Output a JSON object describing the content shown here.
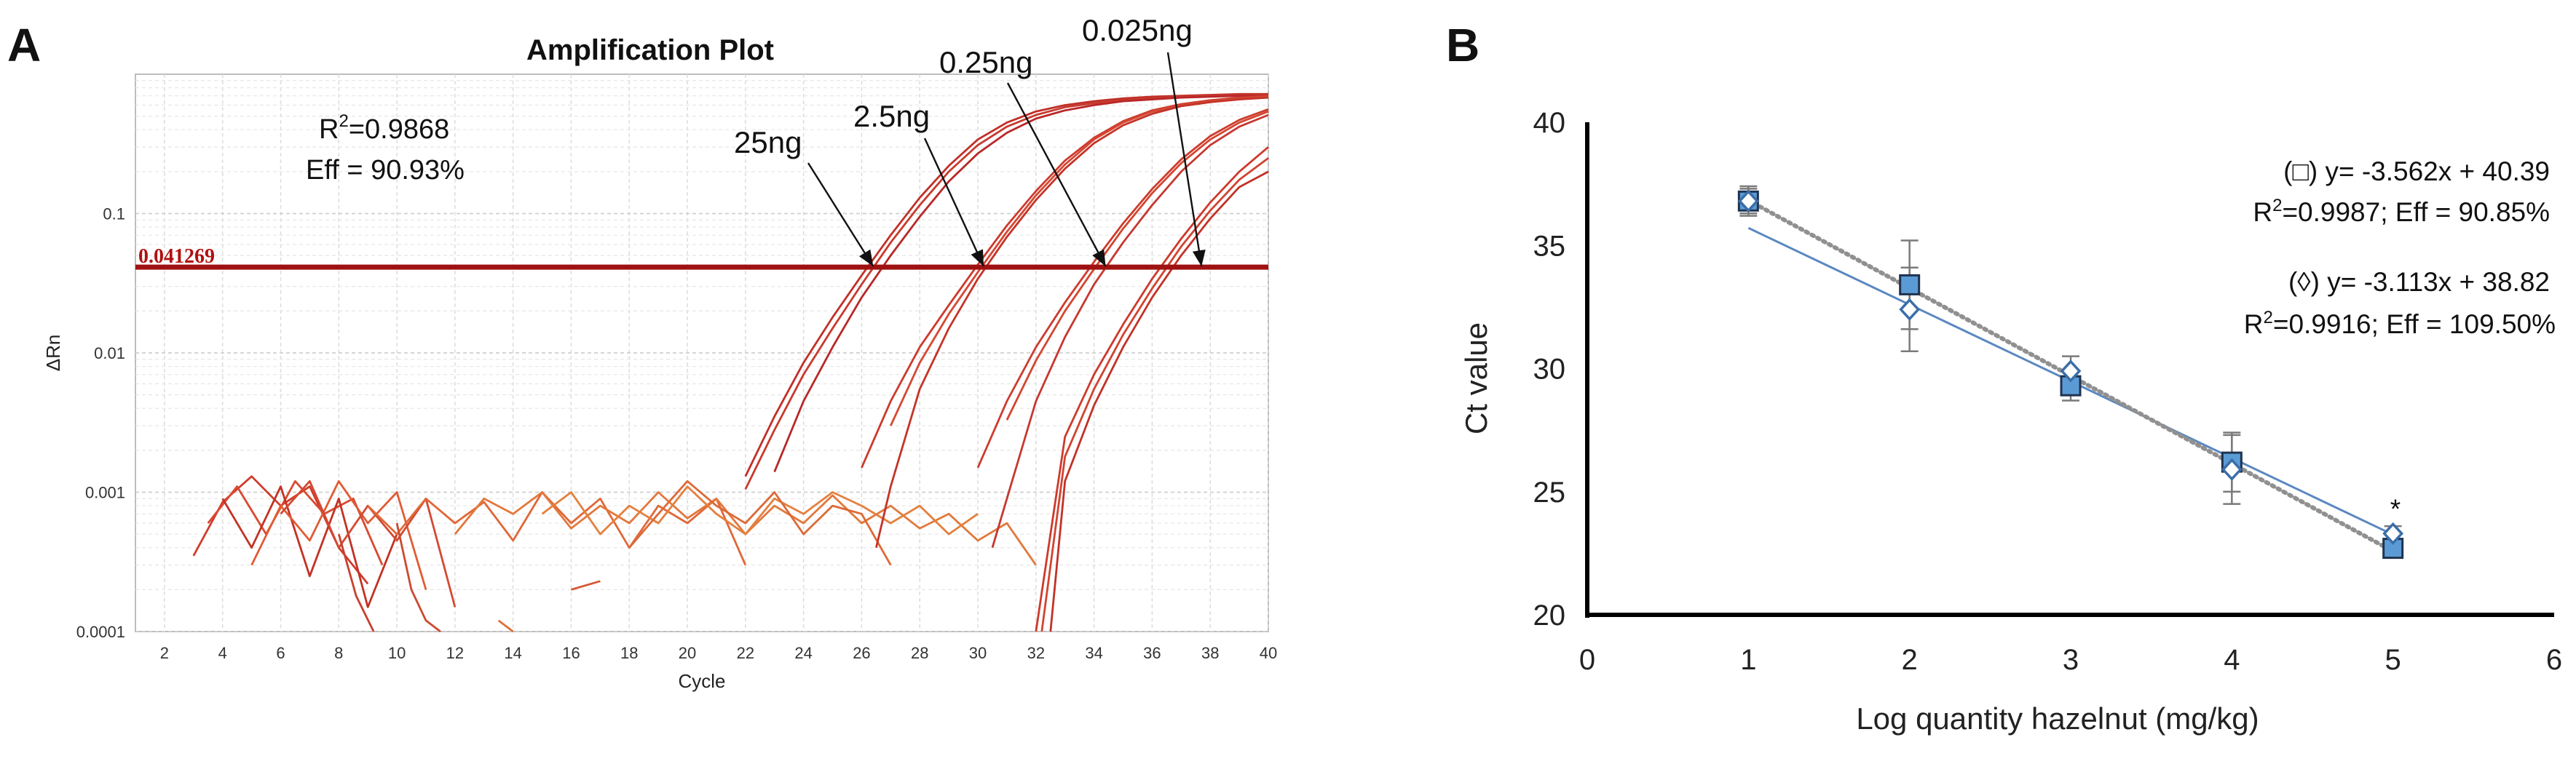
{
  "chart_data": [
    {
      "panel": "A",
      "type": "line",
      "title": "Amplification Plot",
      "xlabel": "Cycle",
      "ylabel": "ΔRn",
      "xlim": [
        1,
        40
      ],
      "ylim": [
        0.0001,
        1
      ],
      "yscale": "log",
      "x_ticks": [
        "2",
        "4",
        "6",
        "8",
        "10",
        "12",
        "14",
        "16",
        "18",
        "20",
        "22",
        "24",
        "26",
        "28",
        "30",
        "32",
        "34",
        "36",
        "38",
        "40"
      ],
      "y_ticks": [
        "0.1",
        "0.01",
        "0.001",
        "0.0001"
      ],
      "threshold": {
        "value": 0.041269,
        "label": "0.041269",
        "color": "#a01212"
      },
      "stats": {
        "r2_prefix": "R",
        "r2_sup": "2",
        "r2_value": "=0.9868",
        "eff": "Eff = 90.93%"
      },
      "annotations": [
        {
          "label": "25ng",
          "x_ct": 26.4
        },
        {
          "label": "2.5ng",
          "x_ct": 30.2
        },
        {
          "label": "0.25ng",
          "x_ct": 34.4
        },
        {
          "label": "0.025ng",
          "x_ct": 37.7
        }
      ],
      "curves": [
        {
          "name": "25ng rep1",
          "color": "#c03028",
          "x": [
            22,
            23,
            24,
            25,
            26,
            27,
            28,
            29,
            30,
            31,
            32,
            33,
            34,
            35,
            36,
            37,
            38,
            39,
            40
          ],
          "y": [
            0.0013,
            0.0035,
            0.0085,
            0.018,
            0.036,
            0.07,
            0.13,
            0.22,
            0.34,
            0.45,
            0.54,
            0.6,
            0.64,
            0.67,
            0.69,
            0.7,
            0.71,
            0.72,
            0.72
          ]
        },
        {
          "name": "25ng rep2",
          "color": "#c83a2e",
          "x": [
            22,
            23,
            24,
            25,
            26,
            27,
            28,
            29,
            30,
            31,
            32,
            33,
            34,
            35,
            36,
            37,
            38,
            39,
            40
          ],
          "y": [
            0.00105,
            0.0028,
            0.007,
            0.015,
            0.031,
            0.062,
            0.115,
            0.2,
            0.31,
            0.42,
            0.51,
            0.58,
            0.62,
            0.65,
            0.67,
            0.69,
            0.7,
            0.71,
            0.71
          ]
        },
        {
          "name": "25ng rep3",
          "color": "#b82828",
          "x": [
            23,
            24,
            25,
            26,
            27,
            28,
            29,
            30,
            31,
            32,
            33,
            34,
            35,
            36,
            37,
            38,
            39,
            40
          ],
          "y": [
            0.0014,
            0.0045,
            0.011,
            0.025,
            0.05,
            0.095,
            0.17,
            0.27,
            0.38,
            0.48,
            0.55,
            0.6,
            0.64,
            0.66,
            0.68,
            0.69,
            0.7,
            0.7
          ]
        },
        {
          "name": "2.5ng rep1",
          "color": "#cc3a2c",
          "x": [
            26,
            27,
            28,
            29,
            30,
            31,
            32,
            33,
            34,
            35,
            36,
            37,
            38,
            39,
            40
          ],
          "y": [
            0.0015,
            0.0045,
            0.011,
            0.022,
            0.043,
            0.082,
            0.145,
            0.24,
            0.35,
            0.46,
            0.55,
            0.61,
            0.65,
            0.68,
            0.7
          ]
        },
        {
          "name": "2.5ng rep2",
          "color": "#d44834",
          "x": [
            27,
            28,
            29,
            30,
            31,
            32,
            33,
            34,
            35,
            36,
            37,
            38,
            39,
            40
          ],
          "y": [
            0.003,
            0.0085,
            0.019,
            0.038,
            0.074,
            0.135,
            0.225,
            0.34,
            0.45,
            0.54,
            0.6,
            0.64,
            0.67,
            0.69
          ]
        },
        {
          "name": "2.5ng rep3",
          "color": "#c43428",
          "x": [
            26.5,
            27,
            28,
            29,
            30,
            31,
            32,
            33,
            34,
            35,
            36,
            37,
            38,
            39,
            40
          ],
          "y": [
            0.0004,
            0.0011,
            0.0055,
            0.015,
            0.034,
            0.068,
            0.125,
            0.21,
            0.32,
            0.43,
            0.52,
            0.59,
            0.63,
            0.66,
            0.68
          ]
        },
        {
          "name": "0.25ng rep1",
          "color": "#cc3c2e",
          "x": [
            30,
            31,
            32,
            33,
            34,
            35,
            36,
            37,
            38,
            39,
            40
          ],
          "y": [
            0.0015,
            0.0045,
            0.011,
            0.023,
            0.045,
            0.085,
            0.15,
            0.245,
            0.36,
            0.47,
            0.56
          ]
        },
        {
          "name": "0.25ng rep2",
          "color": "#d24630",
          "x": [
            31,
            32,
            33,
            34,
            35,
            36,
            37,
            38,
            39,
            40
          ],
          "y": [
            0.0033,
            0.0088,
            0.02,
            0.04,
            0.078,
            0.14,
            0.23,
            0.34,
            0.45,
            0.54
          ]
        },
        {
          "name": "0.25ng rep3",
          "color": "#c63830",
          "x": [
            30.5,
            31,
            32,
            33,
            34,
            35,
            36,
            37,
            38,
            39,
            40
          ],
          "y": [
            0.0004,
            0.0009,
            0.0045,
            0.013,
            0.031,
            0.062,
            0.115,
            0.2,
            0.31,
            0.42,
            0.51
          ]
        },
        {
          "name": "0.025ng rep1",
          "color": "#cc3a2c",
          "x": [
            32,
            33,
            34,
            35,
            36,
            37,
            38,
            39,
            40
          ],
          "y": [
            0.0001,
            0.0025,
            0.007,
            0.016,
            0.034,
            0.066,
            0.12,
            0.2,
            0.3
          ]
        },
        {
          "name": "0.025ng rep2",
          "color": "#d04430",
          "x": [
            32.2,
            33,
            34,
            35,
            36,
            37,
            38,
            39,
            40
          ],
          "y": [
            0.0001,
            0.0018,
            0.0055,
            0.0135,
            0.029,
            0.058,
            0.105,
            0.175,
            0.25
          ]
        },
        {
          "name": "0.025ng rep3",
          "color": "#c23228",
          "x": [
            32.5,
            33,
            34,
            35,
            36,
            37,
            38,
            39,
            40
          ],
          "y": [
            0.0001,
            0.0012,
            0.0042,
            0.011,
            0.025,
            0.05,
            0.092,
            0.155,
            0.2
          ]
        }
      ],
      "noise": [
        {
          "color": "#cf3c2c",
          "x": [
            3,
            4,
            5,
            6,
            7,
            8,
            9
          ],
          "y": [
            0.00035,
            0.00085,
            0.0013,
            0.0008,
            0.0011,
            0.0004,
            0.00022
          ]
        },
        {
          "color": "#d84a30",
          "x": [
            3.5,
            4.5,
            5.5,
            6.5,
            7.5,
            8.5,
            9.5
          ],
          "y": [
            0.0006,
            0.0011,
            0.0005,
            0.0012,
            0.0007,
            0.0009,
            0.0003
          ]
        },
        {
          "color": "#c23224",
          "x": [
            4,
            5,
            6,
            7,
            8,
            9,
            10
          ],
          "y": [
            0.0009,
            0.0004,
            0.0011,
            0.00025,
            0.0009,
            0.00015,
            0.0005
          ]
        },
        {
          "color": "#e05c34",
          "x": [
            5,
            6,
            7,
            8,
            9,
            10,
            11
          ],
          "y": [
            0.0003,
            0.0008,
            0.00045,
            0.0012,
            0.0006,
            0.001,
            0.0002
          ]
        },
        {
          "color": "#d24a32",
          "x": [
            6,
            7,
            8,
            9,
            10,
            11,
            12
          ],
          "y": [
            0.0007,
            0.0012,
            0.0004,
            0.0008,
            0.00045,
            0.0009,
            0.00015
          ]
        },
        {
          "color": "#e06838",
          "x": [
            9,
            10,
            11,
            12,
            13,
            14,
            15,
            16,
            17,
            18,
            19,
            20,
            21,
            22
          ],
          "y": [
            0.0008,
            0.0005,
            0.0009,
            0.0006,
            0.00085,
            0.00045,
            0.001,
            0.0006,
            0.0009,
            0.0004,
            0.0008,
            0.0006,
            0.0009,
            0.0003
          ]
        },
        {
          "color": "#e2783c",
          "x": [
            12,
            13,
            14,
            15,
            16,
            17,
            18,
            19,
            20,
            21,
            22,
            23,
            24,
            25,
            26,
            27,
            28,
            29,
            30,
            31,
            32
          ],
          "y": [
            0.0005,
            0.0009,
            0.0007,
            0.001,
            0.00055,
            0.0008,
            0.0006,
            0.001,
            0.00065,
            0.0009,
            0.0005,
            0.0008,
            0.0006,
            0.00095,
            0.0006,
            0.0008,
            0.00055,
            0.0007,
            0.00045,
            0.0006,
            0.0003
          ]
        },
        {
          "color": "#e4803e",
          "x": [
            15,
            16,
            17,
            18,
            19,
            20,
            21,
            22,
            23,
            24,
            25,
            26,
            27,
            28,
            29,
            30
          ],
          "y": [
            0.0007,
            0.001,
            0.0005,
            0.0008,
            0.0006,
            0.0011,
            0.0007,
            0.0005,
            0.0009,
            0.0007,
            0.001,
            0.0008,
            0.0006,
            0.0008,
            0.0005,
            0.0007
          ]
        },
        {
          "color": "#dc6a38",
          "x": [
            18,
            19,
            20,
            21,
            22,
            23,
            24,
            25,
            26,
            27
          ],
          "y": [
            0.0004,
            0.0007,
            0.0012,
            0.0008,
            0.0006,
            0.001,
            0.0005,
            0.0008,
            0.0007,
            0.0003
          ]
        },
        {
          "color": "#d55a34",
          "x": [
            16,
            17
          ],
          "y": [
            0.0002,
            0.00023
          ]
        },
        {
          "color": "#cc4a30",
          "x": [
            10,
            10.5,
            11,
            11.5
          ],
          "y": [
            0.0006,
            0.0002,
            0.00012,
            0.0001
          ]
        },
        {
          "color": "#c84030",
          "x": [
            8,
            8.6,
            9.2
          ],
          "y": [
            0.0005,
            0.00018,
            0.0001
          ]
        },
        {
          "color": "#e0703a",
          "x": [
            13.5,
            14
          ],
          "y": [
            0.00012,
            0.0001
          ]
        }
      ]
    },
    {
      "panel": "B",
      "type": "scatter",
      "xlabel": "Log quantity hazelnut (mg/kg)",
      "ylabel": "Ct value",
      "xlim": [
        0,
        6
      ],
      "ylim": [
        20,
        40
      ],
      "x_ticks": [
        "0",
        "1",
        "2",
        "3",
        "4",
        "5",
        "6"
      ],
      "y_ticks": [
        "20",
        "25",
        "30",
        "35",
        "40"
      ],
      "series": [
        {
          "name": "squares",
          "marker": "square",
          "color": "#5b9bd5",
          "x": [
            1,
            2,
            3,
            4,
            5
          ],
          "y": [
            36.8,
            33.4,
            29.3,
            26.2,
            22.7
          ],
          "err": [
            0.6,
            1.8,
            0.6,
            1.2,
            0.3
          ],
          "fit": {
            "slope": -3.562,
            "intercept": 40.39,
            "style": "dotted",
            "color": "#909090"
          }
        },
        {
          "name": "diamonds",
          "marker": "diamond",
          "color": "#3a6ea8",
          "x": [
            1,
            2,
            3,
            4,
            5
          ],
          "y": [
            36.8,
            32.4,
            29.9,
            25.9,
            23.3
          ],
          "err": [
            0.5,
            1.7,
            0.6,
            1.4,
            0.3
          ],
          "fit": {
            "slope": -3.113,
            "intercept": 38.82,
            "style": "solid",
            "color": "#5b88c0"
          }
        }
      ],
      "equations": [
        {
          "line1": "(□) y= -3.562x + 40.39",
          "r2_prefix": "R",
          "r2_sup": "2",
          "r2_rest": "=0.9987; Eff = 90.85%"
        },
        {
          "line1": "(◊) y= -3.113x + 38.82",
          "r2_prefix": "R",
          "r2_sup": "2",
          "r2_rest": "=0.9916; Eff = 109.50%"
        }
      ],
      "asterisk": "*"
    }
  ]
}
